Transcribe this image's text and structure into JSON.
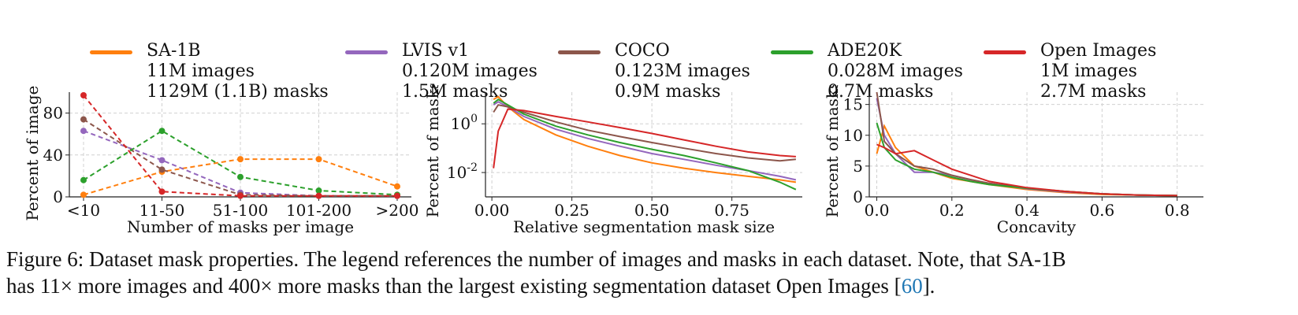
{
  "legend": [
    {
      "name": "SA-1B",
      "images": "11M images",
      "masks": "1129M (1.1B) masks",
      "color": "#ff7f0e"
    },
    {
      "name": "LVIS v1",
      "images": "0.120M images",
      "masks": "1.5M masks",
      "color": "#9467bd"
    },
    {
      "name": "COCO",
      "images": "0.123M images",
      "masks": "0.9M masks",
      "color": "#8c564b"
    },
    {
      "name": "ADE20K",
      "images": "0.028M images",
      "masks": "0.7M masks",
      "color": "#2ca02c"
    },
    {
      "name": "Open Images",
      "images": "1M images",
      "masks": "2.7M masks",
      "color": "#d62728"
    }
  ],
  "chart_data": [
    {
      "type": "line",
      "style": "dashed-with-markers",
      "xlabel": "Number of masks per image",
      "ylabel": "Percent of images",
      "categories": [
        "<10",
        "11-50",
        "51-100",
        "101-200",
        ">200"
      ],
      "yticks": [
        0,
        40,
        80
      ],
      "ylim": [
        0,
        100
      ],
      "grid": true,
      "series": [
        {
          "name": "SA-1B",
          "values": [
            2,
            24,
            36,
            36,
            10
          ]
        },
        {
          "name": "LVIS v1",
          "values": [
            63,
            35,
            4,
            1,
            1
          ]
        },
        {
          "name": "COCO",
          "values": [
            74,
            26,
            2,
            1,
            1
          ]
        },
        {
          "name": "ADE20K",
          "values": [
            16,
            63,
            19,
            6,
            2
          ]
        },
        {
          "name": "Open Images",
          "values": [
            97,
            5,
            1,
            1,
            1
          ]
        }
      ]
    },
    {
      "type": "line",
      "xlabel": "Relative segmentation mask size",
      "ylabel": "Percent of masks",
      "yscale": "log",
      "xlim": [
        -0.02,
        0.97
      ],
      "ylim": [
        0.001,
        20
      ],
      "xticks": [
        "0.00",
        "0.25",
        "0.50",
        "0.75"
      ],
      "yticks": [
        "10^0",
        "10^-2"
      ],
      "grid": true,
      "series": [
        {
          "name": "SA-1B",
          "x": [
            0.005,
            0.02,
            0.05,
            0.1,
            0.2,
            0.3,
            0.4,
            0.5,
            0.6,
            0.7,
            0.8,
            0.9,
            0.95
          ],
          "y": [
            10,
            13,
            5,
            1.5,
            0.35,
            0.12,
            0.05,
            0.025,
            0.015,
            0.01,
            0.007,
            0.005,
            0.004
          ]
        },
        {
          "name": "LVIS v1",
          "x": [
            0.005,
            0.02,
            0.05,
            0.1,
            0.2,
            0.3,
            0.4,
            0.5,
            0.6,
            0.7,
            0.8,
            0.9,
            0.95
          ],
          "y": [
            6,
            8,
            5,
            2,
            0.6,
            0.25,
            0.12,
            0.06,
            0.035,
            0.02,
            0.012,
            0.007,
            0.005
          ]
        },
        {
          "name": "COCO",
          "x": [
            0.005,
            0.02,
            0.05,
            0.1,
            0.2,
            0.3,
            0.4,
            0.5,
            0.6,
            0.7,
            0.8,
            0.9,
            0.95
          ],
          "y": [
            3,
            6,
            5,
            3,
            1.2,
            0.55,
            0.3,
            0.17,
            0.1,
            0.06,
            0.04,
            0.03,
            0.035
          ]
        },
        {
          "name": "ADE20K",
          "x": [
            0.005,
            0.02,
            0.05,
            0.1,
            0.2,
            0.3,
            0.4,
            0.5,
            0.6,
            0.7,
            0.8,
            0.9,
            0.95
          ],
          "y": [
            7,
            10,
            6,
            2.5,
            0.8,
            0.35,
            0.17,
            0.09,
            0.05,
            0.025,
            0.012,
            0.004,
            0.002
          ]
        },
        {
          "name": "Open Images",
          "x": [
            0.005,
            0.02,
            0.05,
            0.1,
            0.2,
            0.3,
            0.4,
            0.5,
            0.6,
            0.7,
            0.8,
            0.9,
            0.95
          ],
          "y": [
            0.015,
            0.5,
            4,
            3.5,
            2,
            1.2,
            0.7,
            0.4,
            0.22,
            0.12,
            0.07,
            0.05,
            0.045
          ]
        }
      ]
    },
    {
      "type": "line",
      "xlabel": "Concavity",
      "ylabel": "Percent of masks",
      "xlim": [
        -0.02,
        0.87
      ],
      "ylim": [
        0,
        17
      ],
      "xticks": [
        "0.0",
        "0.2",
        "0.4",
        "0.6",
        "0.8"
      ],
      "yticks": [
        0,
        5,
        10,
        15
      ],
      "grid": true,
      "series": [
        {
          "name": "SA-1B",
          "x": [
            0.0,
            0.02,
            0.05,
            0.1,
            0.15,
            0.2,
            0.25,
            0.3,
            0.4,
            0.5,
            0.6,
            0.7,
            0.8
          ],
          "y": [
            7,
            11.5,
            8,
            5,
            4,
            3,
            2.5,
            2,
            1.2,
            0.7,
            0.4,
            0.3,
            0.2
          ]
        },
        {
          "name": "LVIS v1",
          "x": [
            0.0,
            0.02,
            0.05,
            0.1,
            0.15,
            0.2,
            0.25,
            0.3,
            0.4,
            0.5,
            0.6,
            0.7,
            0.8
          ],
          "y": [
            16,
            10,
            7,
            4,
            4,
            3.5,
            2.8,
            2.2,
            1.3,
            0.8,
            0.5,
            0.3,
            0.2
          ]
        },
        {
          "name": "COCO",
          "x": [
            0.0,
            0.02,
            0.05,
            0.1,
            0.15,
            0.2,
            0.25,
            0.3,
            0.4,
            0.5,
            0.6,
            0.7,
            0.8
          ],
          "y": [
            17,
            9,
            7,
            5,
            4.5,
            3.5,
            2.8,
            2.2,
            1.4,
            0.9,
            0.5,
            0.3,
            0.2
          ]
        },
        {
          "name": "ADE20K",
          "x": [
            0.0,
            0.02,
            0.05,
            0.1,
            0.15,
            0.2,
            0.25,
            0.3,
            0.4,
            0.5,
            0.6,
            0.7,
            0.8
          ],
          "y": [
            12,
            8,
            6,
            4.5,
            4,
            3.2,
            2.5,
            2,
            1.4,
            0.9,
            0.5,
            0.3,
            0.2
          ]
        },
        {
          "name": "Open Images",
          "x": [
            0.0,
            0.02,
            0.05,
            0.1,
            0.15,
            0.2,
            0.25,
            0.3,
            0.4,
            0.5,
            0.6,
            0.7,
            0.8
          ],
          "y": [
            8.5,
            8,
            7,
            7.5,
            6,
            4.5,
            3.5,
            2.5,
            1.5,
            0.9,
            0.5,
            0.3,
            0.2
          ]
        }
      ]
    }
  ],
  "caption": {
    "line1": "Figure 6: Dataset mask properties. The legend references the number of images and masks in each dataset. Note, that SA-1B",
    "line2_before": "has 11× more images and 400× more masks than the largest existing segmentation dataset Open Images [",
    "cite": "60",
    "line2_after": "]."
  }
}
